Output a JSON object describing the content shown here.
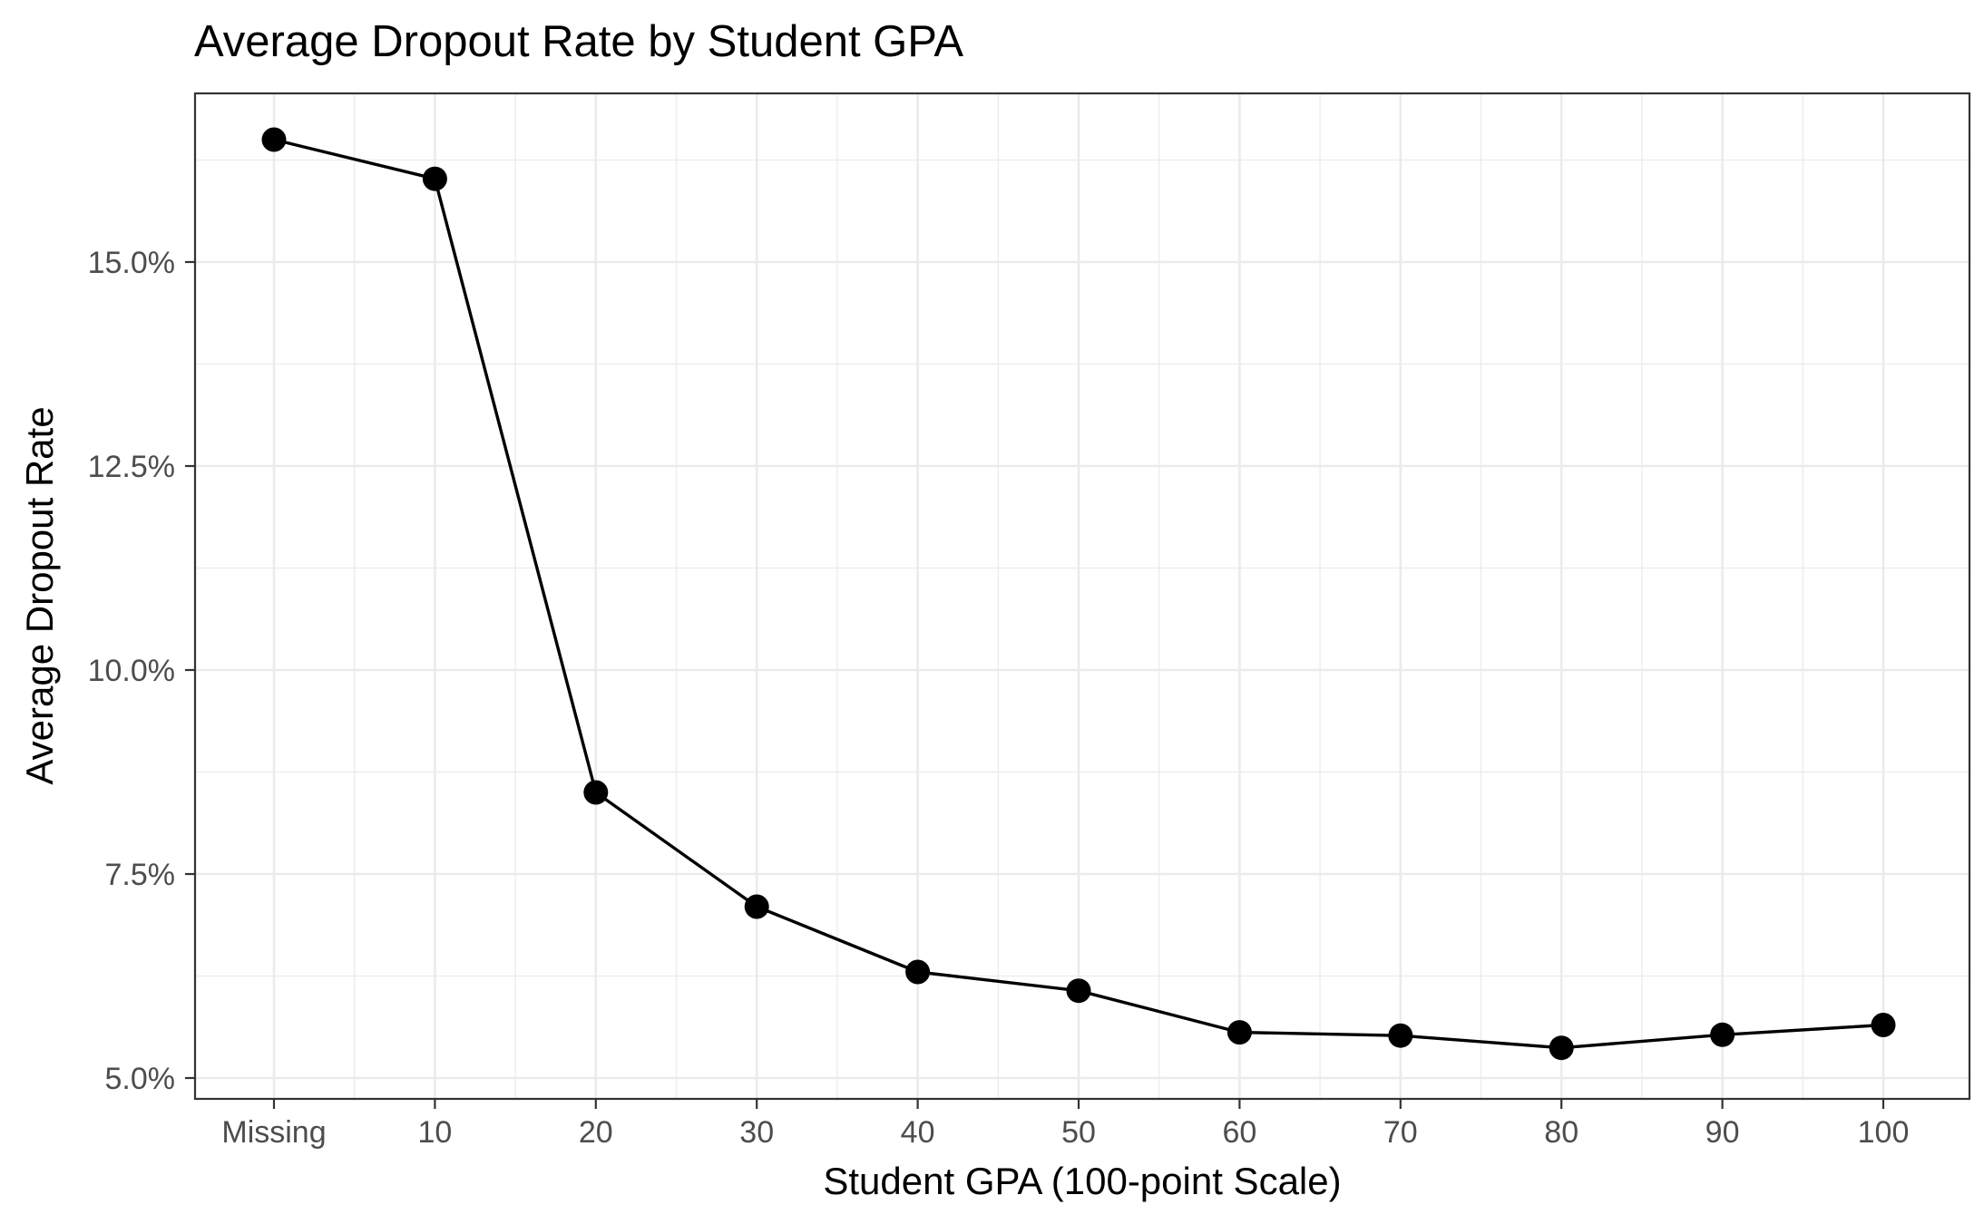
{
  "chart_data": {
    "type": "line",
    "title": "Average Dropout Rate by Student GPA",
    "xlabel": "Student GPA (100-point Scale)",
    "ylabel": "Average Dropout Rate",
    "categories": [
      "Missing",
      "10",
      "20",
      "30",
      "40",
      "50",
      "60",
      "70",
      "80",
      "90",
      "100"
    ],
    "series": [
      {
        "values": [
          16.5,
          16.02,
          8.5,
          7.1,
          6.3,
          6.07,
          5.56,
          5.52,
          5.37,
          5.53,
          5.65
        ]
      }
    ],
    "yticks": [
      5.0,
      7.5,
      10.0,
      12.5,
      15.0
    ],
    "ytick_labels": [
      "5.0%",
      "7.5%",
      "10.0%",
      "12.5%",
      "15.0%"
    ],
    "ylim": [
      4.75,
      17.05
    ],
    "grid": true,
    "legend": "none",
    "colors": {
      "line": "#000000",
      "point": "#000000",
      "grid": "#ebebeb",
      "panel_border": "#333333"
    }
  }
}
